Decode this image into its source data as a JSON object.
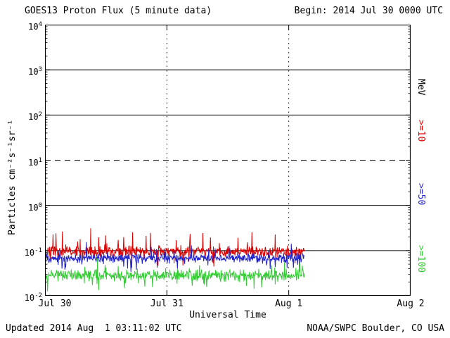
{
  "header": {
    "title": "GOES13 Proton Flux (5 minute data)",
    "begin": "Begin: 2014 Jul 30 0000 UTC"
  },
  "axes": {
    "y_title": "Particles cm⁻²s⁻¹sr⁻¹",
    "x_title": "Universal Time"
  },
  "right_axis": {
    "unit": "MeV"
  },
  "footer": {
    "updated": "Updated 2014 Aug  1 03:11:02 UTC",
    "source": "NOAA/SWPC Boulder, CO USA"
  },
  "chart_data": {
    "type": "line",
    "title": "GOES13 Proton Flux (5 minute data)",
    "xlabel": "Universal Time",
    "ylabel": "Particles cm⁻²s⁻¹sr⁻¹",
    "y_scale": "log",
    "ylim_log10": [
      -2,
      4
    ],
    "y_tick_exponents": [
      4,
      3,
      2,
      1,
      0,
      -1,
      -2
    ],
    "x_tick_labels": [
      "Jul 30",
      "Jul 31",
      "Aug 1",
      "Aug 2"
    ],
    "x_span_days": 3,
    "data_span_days": 2.133,
    "points_per_day": 288,
    "gridlines": {
      "solid_log10": [
        3,
        2,
        0,
        -1
      ],
      "dashed_log10": [
        1
      ],
      "dotted_vertical_days": [
        1,
        2
      ]
    },
    "seed": 20140730,
    "series": [
      {
        "name": ">=10",
        "unit": "MeV",
        "color": "#dd0000",
        "approx_flux_level": 0.1,
        "base_log10": -1.02,
        "jitter_log10": 0.17,
        "spike_prob": 0.06,
        "spike_log10": 0.45,
        "dip_prob": 0.04,
        "dip_log10": 0.3
      },
      {
        "name": ">=50",
        "unit": "MeV",
        "color": "#2222cc",
        "approx_flux_level": 0.07,
        "base_log10": -1.17,
        "jitter_log10": 0.15,
        "spike_prob": 0.04,
        "spike_log10": 0.3,
        "dip_prob": 0.04,
        "dip_log10": 0.25
      },
      {
        "name": ">=100",
        "unit": "MeV",
        "color": "#33cc33",
        "approx_flux_level": 0.028,
        "base_log10": -1.55,
        "jitter_log10": 0.18,
        "spike_prob": 0.05,
        "spike_log10": 0.25,
        "dip_prob": 0.06,
        "dip_log10": 0.3
      }
    ]
  }
}
